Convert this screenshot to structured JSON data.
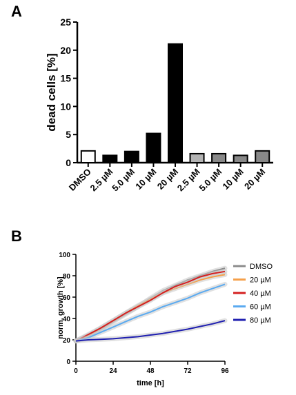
{
  "panel_labels": [
    "A",
    "B"
  ],
  "chart_data": [
    {
      "type": "bar",
      "title": "",
      "xlabel": "",
      "ylabel": "dead cells [%]",
      "ylim": [
        0,
        25
      ],
      "yticks": [
        0,
        5,
        10,
        15,
        20,
        25
      ],
      "categories": [
        "DMSO",
        "2.5 µM",
        "5.0 µM",
        "10 µM",
        "20 µM",
        "2.5 µM",
        "5.0 µM",
        "10 µM",
        "20 µM"
      ],
      "values": [
        2.1,
        1.3,
        2.0,
        5.2,
        21.1,
        1.6,
        1.6,
        1.3,
        2.1
      ],
      "bar_colors": [
        "#ffffff",
        "#000000",
        "#000000",
        "#000000",
        "#000000",
        "#b3b3b3",
        "#888888",
        "#888888",
        "#888888"
      ]
    },
    {
      "type": "line",
      "title": "",
      "xlabel": "time [h]",
      "ylabel": "norm. growth [%]",
      "xlim": [
        0,
        96
      ],
      "ylim": [
        0,
        100
      ],
      "xticks": [
        0,
        24,
        48,
        72,
        96
      ],
      "yticks": [
        0,
        20,
        40,
        60,
        80,
        100
      ],
      "x": [
        0,
        8,
        16,
        24,
        32,
        40,
        48,
        56,
        64,
        72,
        80,
        88,
        96
      ],
      "legend_position": "right",
      "series": [
        {
          "name": "DMSO",
          "color": "#8c8c8c",
          "values": [
            19,
            24,
            30,
            37,
            44,
            51,
            59,
            66,
            71,
            76,
            80,
            84,
            87
          ]
        },
        {
          "name": "20 µM",
          "color": "#f5a04a",
          "values": [
            19,
            24,
            31,
            38,
            45,
            52,
            58,
            64,
            68,
            72,
            76,
            79,
            81
          ]
        },
        {
          "name": "40 µM",
          "color": "#d42020",
          "values": [
            19,
            25,
            31,
            38,
            45,
            51,
            57,
            64,
            70,
            74,
            79,
            82,
            84
          ]
        },
        {
          "name": "60 µM",
          "color": "#5aaaf0",
          "values": [
            19,
            22,
            27,
            32,
            37,
            42,
            46,
            51,
            55,
            59,
            64,
            68,
            72
          ]
        },
        {
          "name": "80 µM",
          "color": "#1f1fb0",
          "values": [
            19,
            20,
            20.5,
            21,
            22,
            23,
            24.5,
            26,
            28,
            30,
            32.5,
            35,
            38
          ]
        }
      ]
    }
  ]
}
